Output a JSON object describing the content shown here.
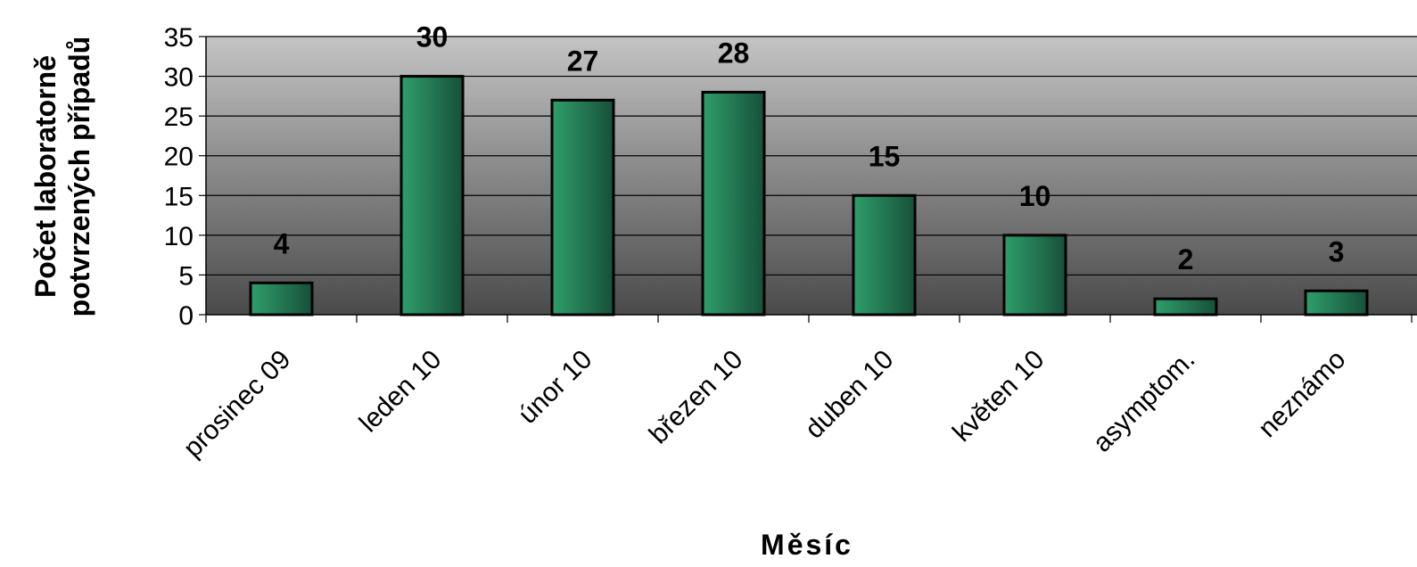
{
  "chart_data": {
    "type": "bar",
    "categories": [
      "prosinec 09",
      "leden 10",
      "únor 10",
      "březen 10",
      "duben 10",
      "květen 10",
      "asymptom.",
      "neznámo"
    ],
    "values": [
      4,
      30,
      27,
      28,
      15,
      10,
      2,
      3
    ],
    "xlabel": "Měsíc",
    "ylabel_lines": [
      "Počet laboratorně",
      "potvrzených případů"
    ],
    "ylim": [
      0,
      35
    ],
    "yticks": [
      0,
      5,
      10,
      15,
      20,
      25,
      30,
      35
    ],
    "grid": true,
    "data_labels": true,
    "colors": {
      "bar_light": "#2f9e6a",
      "bar_dark": "#17503a",
      "bar_outline": "#000000",
      "plot_bg_top": "#c4c4c4",
      "plot_bg_bottom": "#4a4a4a"
    }
  }
}
